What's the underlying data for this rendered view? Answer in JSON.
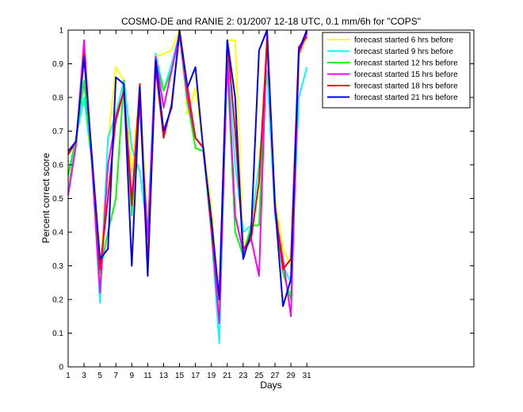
{
  "chart_data": {
    "type": "line",
    "title": "COSMO-DE and RANIE 2: 01/2007 12-18 UTC, 0.1 mm/6h for \"COPS\"",
    "xlabel": "Days",
    "ylabel": "Percent correct score",
    "xlim": [
      1,
      52
    ],
    "ylim": [
      0,
      1
    ],
    "x_ticks": [
      1,
      3,
      5,
      7,
      9,
      11,
      13,
      15,
      17,
      19,
      21,
      23,
      25,
      27,
      29,
      31
    ],
    "y_ticks": [
      0,
      0.1,
      0.2,
      0.3,
      0.4,
      0.5,
      0.6,
      0.7,
      0.8,
      0.9,
      1
    ],
    "grid": false,
    "legend_position": "top-right",
    "x": [
      1,
      2,
      3,
      4,
      5,
      6,
      7,
      8,
      9,
      10,
      11,
      12,
      13,
      14,
      15,
      16,
      17,
      18,
      19,
      20,
      21,
      22,
      23,
      24,
      25,
      26,
      27,
      28,
      29,
      30,
      31
    ],
    "series": [
      {
        "name": "forecast started 6 hrs before",
        "color": "#ffff00",
        "values": [
          0.55,
          0.67,
          0.93,
          0.6,
          0.25,
          0.67,
          0.89,
          0.85,
          0.58,
          0.82,
          0.42,
          0.92,
          0.93,
          0.94,
          1.0,
          0.75,
          0.83,
          0.65,
          0.48,
          0.15,
          0.97,
          0.97,
          0.36,
          0.4,
          0.55,
          0.95,
          0.5,
          0.35,
          0.3,
          0.92,
          0.98
        ]
      },
      {
        "name": "forecast started 9 hrs before",
        "color": "#00ffff",
        "values": [
          0.52,
          0.68,
          0.8,
          0.6,
          0.19,
          0.68,
          0.75,
          0.85,
          0.65,
          0.58,
          0.4,
          0.93,
          0.82,
          0.9,
          0.99,
          0.78,
          0.68,
          0.65,
          0.4,
          0.07,
          0.95,
          0.6,
          0.4,
          0.42,
          0.6,
          0.88,
          0.45,
          0.3,
          0.25,
          0.8,
          0.89
        ]
      },
      {
        "name": "forecast started 12 hrs before",
        "color": "#00ff00",
        "values": [
          0.57,
          0.68,
          0.85,
          0.6,
          0.28,
          0.4,
          0.5,
          0.85,
          0.45,
          0.8,
          0.3,
          0.91,
          0.82,
          0.88,
          0.99,
          0.79,
          0.65,
          0.64,
          0.4,
          0.13,
          0.9,
          0.4,
          0.33,
          0.42,
          0.42,
          0.98,
          0.47,
          0.28,
          0.2,
          0.93,
          1.0
        ]
      },
      {
        "name": "forecast started 15 hrs before",
        "color": "#ff00ff",
        "values": [
          0.51,
          0.66,
          0.97,
          0.6,
          0.22,
          0.6,
          0.73,
          0.82,
          0.5,
          0.78,
          0.38,
          0.92,
          0.77,
          0.88,
          0.99,
          0.8,
          0.68,
          0.65,
          0.41,
          0.13,
          0.92,
          0.45,
          0.34,
          0.38,
          0.27,
          0.99,
          0.46,
          0.32,
          0.15,
          0.93,
          0.99
        ]
      },
      {
        "name": "forecast started 18 hrs before",
        "color": "#ff0000",
        "values": [
          0.63,
          0.67,
          0.93,
          0.62,
          0.29,
          0.5,
          0.74,
          0.82,
          0.48,
          0.84,
          0.3,
          0.89,
          0.68,
          0.78,
          0.99,
          0.83,
          0.68,
          0.65,
          0.42,
          0.2,
          0.97,
          0.7,
          0.35,
          0.38,
          0.55,
          0.97,
          0.48,
          0.29,
          0.32,
          0.95,
          0.98
        ]
      },
      {
        "name": "forecast started 21 hrs before",
        "color": "#0000ff",
        "values": [
          0.64,
          0.67,
          0.92,
          0.62,
          0.32,
          0.35,
          0.86,
          0.84,
          0.3,
          0.83,
          0.27,
          0.91,
          0.7,
          0.77,
          1.0,
          0.83,
          0.89,
          0.64,
          0.44,
          0.2,
          0.97,
          0.8,
          0.32,
          0.4,
          0.94,
          1.0,
          0.48,
          0.18,
          0.26,
          0.94,
          1.0
        ]
      }
    ]
  }
}
